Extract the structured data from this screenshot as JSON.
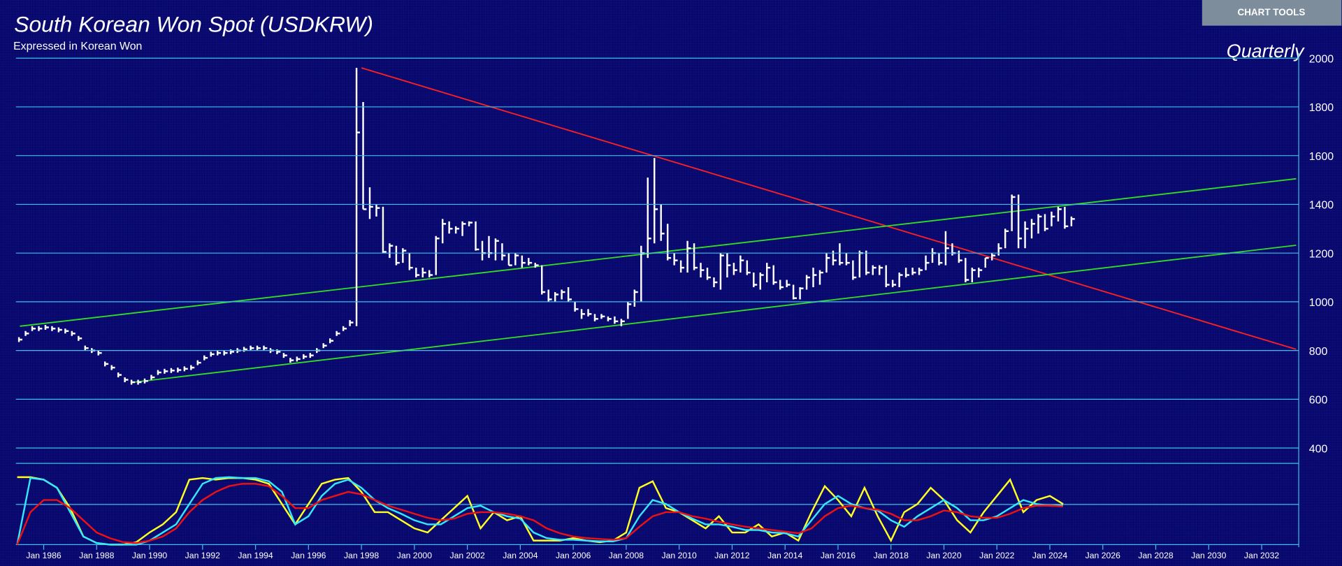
{
  "chart_tools": "CHART TOOLS",
  "chart_data": {
    "type": "ohlc",
    "title": "South Korean Won Spot (USDKRW)",
    "subtitle": "Expressed in Korean Won",
    "frequency_label": "Quarterly",
    "color": "#ffffff",
    "x": [
      1985,
      1985.25,
      1985.5,
      1985.75,
      1986,
      1986.25,
      1986.5,
      1986.75,
      1987,
      1987.25,
      1987.5,
      1987.75,
      1988,
      1988.25,
      1988.5,
      1988.75,
      1989,
      1989.25,
      1989.5,
      1989.75,
      1990,
      1990.25,
      1990.5,
      1990.75,
      1991,
      1991.25,
      1991.5,
      1991.75,
      1992,
      1992.25,
      1992.5,
      1992.75,
      1993,
      1993.25,
      1993.5,
      1993.75,
      1994,
      1994.25,
      1994.5,
      1994.75,
      1995,
      1995.25,
      1995.5,
      1995.75,
      1996,
      1996.25,
      1996.5,
      1996.75,
      1997,
      1997.25,
      1997.5,
      1997.75,
      1998,
      1998.25,
      1998.5,
      1998.75,
      1999,
      1999.25,
      1999.5,
      1999.75,
      2000,
      2000.25,
      2000.5,
      2000.75,
      2001,
      2001.25,
      2001.5,
      2001.75,
      2002,
      2002.25,
      2002.5,
      2002.75,
      2003,
      2003.25,
      2003.5,
      2003.75,
      2004,
      2004.25,
      2004.5,
      2004.75,
      2005,
      2005.25,
      2005.5,
      2005.75,
      2006,
      2006.25,
      2006.5,
      2006.75,
      2007,
      2007.25,
      2007.5,
      2007.75,
      2008,
      2008.25,
      2008.5,
      2008.75,
      2009,
      2009.25,
      2009.5,
      2009.75,
      2010,
      2010.25,
      2010.5,
      2010.75,
      2011,
      2011.25,
      2011.5,
      2011.75,
      2012,
      2012.25,
      2012.5,
      2012.75,
      2013,
      2013.25,
      2013.5,
      2013.75,
      2014,
      2014.25,
      2014.5,
      2014.75,
      2015,
      2015.25,
      2015.5,
      2015.75,
      2016,
      2016.25,
      2016.5,
      2016.75,
      2017,
      2017.25,
      2017.5,
      2017.75,
      2018,
      2018.25,
      2018.5,
      2018.75,
      2019,
      2019.25,
      2019.5,
      2019.75,
      2020,
      2020.25,
      2020.5,
      2020.75,
      2021,
      2021.25,
      2021.5,
      2021.75,
      2022,
      2022.25,
      2022.5,
      2022.75,
      2023,
      2023.25,
      2023.5,
      2023.75,
      2024,
      2024.25,
      2024.5,
      2024.75
    ],
    "high": [
      855,
      880,
      900,
      900,
      905,
      900,
      895,
      890,
      880,
      860,
      820,
      810,
      800,
      755,
      740,
      710,
      690,
      680,
      680,
      685,
      700,
      720,
      725,
      728,
      730,
      735,
      740,
      760,
      780,
      795,
      800,
      800,
      805,
      810,
      815,
      820,
      820,
      820,
      810,
      805,
      790,
      770,
      775,
      785,
      790,
      810,
      830,
      850,
      880,
      900,
      925,
      1960,
      1820,
      1470,
      1400,
      1390,
      1240,
      1230,
      1220,
      1200,
      1140,
      1140,
      1130,
      1270,
      1340,
      1330,
      1310,
      1330,
      1330,
      1330,
      1250,
      1270,
      1260,
      1240,
      1200,
      1200,
      1190,
      1180,
      1160,
      1150,
      1050,
      1040,
      1050,
      1060,
      1000,
      970,
      970,
      950,
      950,
      940,
      940,
      930,
      1000,
      1050,
      1230,
      1510,
      1590,
      1400,
      1320,
      1200,
      1170,
      1250,
      1240,
      1160,
      1140,
      1100,
      1200,
      1200,
      1160,
      1190,
      1170,
      1120,
      1120,
      1160,
      1150,
      1090,
      1090,
      1070,
      1060,
      1110,
      1140,
      1130,
      1200,
      1210,
      1240,
      1200,
      1170,
      1210,
      1210,
      1150,
      1150,
      1150,
      1090,
      1120,
      1140,
      1140,
      1140,
      1190,
      1220,
      1200,
      1290,
      1240,
      1210,
      1180,
      1140,
      1140,
      1180,
      1200,
      1240,
      1300,
      1440,
      1440,
      1330,
      1340,
      1360,
      1360,
      1370,
      1390,
      1390,
      1350
    ],
    "low": [
      835,
      860,
      880,
      880,
      885,
      880,
      875,
      870,
      860,
      840,
      800,
      790,
      780,
      735,
      720,
      690,
      670,
      660,
      660,
      665,
      680,
      700,
      705,
      708,
      710,
      715,
      720,
      740,
      760,
      775,
      780,
      780,
      785,
      790,
      795,
      800,
      800,
      800,
      790,
      785,
      770,
      750,
      755,
      765,
      770,
      790,
      810,
      830,
      860,
      880,
      900,
      900,
      1380,
      1340,
      1350,
      1200,
      1180,
      1150,
      1160,
      1130,
      1100,
      1100,
      1100,
      1110,
      1240,
      1280,
      1280,
      1270,
      1310,
      1210,
      1170,
      1180,
      1170,
      1170,
      1150,
      1150,
      1140,
      1150,
      1140,
      1030,
      1000,
      1000,
      1010,
      1000,
      960,
      930,
      940,
      920,
      930,
      920,
      910,
      900,
      930,
      980,
      1000,
      1180,
      1240,
      1250,
      1170,
      1150,
      1120,
      1120,
      1130,
      1100,
      1090,
      1060,
      1050,
      1100,
      1110,
      1120,
      1110,
      1060,
      1050,
      1080,
      1070,
      1050,
      1060,
      1010,
      1010,
      1050,
      1060,
      1070,
      1120,
      1150,
      1150,
      1150,
      1090,
      1100,
      1110,
      1110,
      1110,
      1060,
      1060,
      1060,
      1100,
      1110,
      1110,
      1130,
      1160,
      1150,
      1150,
      1190,
      1160,
      1080,
      1080,
      1100,
      1140,
      1170,
      1190,
      1220,
      1290,
      1220,
      1220,
      1260,
      1280,
      1290,
      1310,
      1330,
      1300,
      1310
    ],
    "close": [
      845,
      870,
      890,
      890,
      895,
      890,
      885,
      880,
      870,
      850,
      810,
      800,
      790,
      745,
      730,
      700,
      680,
      670,
      670,
      675,
      690,
      710,
      715,
      718,
      720,
      725,
      730,
      750,
      770,
      785,
      790,
      790,
      795,
      800,
      805,
      810,
      810,
      810,
      800,
      795,
      780,
      760,
      765,
      775,
      780,
      800,
      820,
      840,
      870,
      890,
      915,
      1695,
      1380,
      1390,
      1385,
      1205,
      1230,
      1160,
      1210,
      1140,
      1110,
      1120,
      1110,
      1260,
      1320,
      1300,
      1300,
      1320,
      1325,
      1215,
      1200,
      1200,
      1250,
      1190,
      1150,
      1190,
      1160,
      1160,
      1150,
      1040,
      1010,
      1030,
      1040,
      1010,
      970,
      950,
      950,
      930,
      940,
      930,
      920,
      920,
      990,
      1040,
      1200,
      1260,
      1380,
      1280,
      1180,
      1170,
      1140,
      1220,
      1140,
      1130,
      1100,
      1080,
      1190,
      1150,
      1130,
      1170,
      1120,
      1070,
      1110,
      1140,
      1080,
      1060,
      1070,
      1015,
      1055,
      1100,
      1110,
      1120,
      1180,
      1170,
      1160,
      1160,
      1100,
      1200,
      1120,
      1140,
      1140,
      1070,
      1070,
      1110,
      1110,
      1120,
      1130,
      1160,
      1200,
      1160,
      1220,
      1200,
      1170,
      1090,
      1130,
      1130,
      1180,
      1190,
      1220,
      1290,
      1430,
      1260,
      1300,
      1320,
      1350,
      1300,
      1350,
      1380,
      1310,
      1340
    ],
    "xlim": [
      1984.95,
      2033.4
    ],
    "xticks": [
      {
        "value": 1986,
        "label": "Jan 1986"
      },
      {
        "value": 1988,
        "label": "Jan 1988"
      },
      {
        "value": 1990,
        "label": "Jan 1990"
      },
      {
        "value": 1992,
        "label": "Jan 1992"
      },
      {
        "value": 1994,
        "label": "Jan 1994"
      },
      {
        "value": 1996,
        "label": "Jan 1996"
      },
      {
        "value": 1998,
        "label": "Jan 1998"
      },
      {
        "value": 2000,
        "label": "Jan 2000"
      },
      {
        "value": 2002,
        "label": "Jan 2002"
      },
      {
        "value": 2004,
        "label": "Jan 2004"
      },
      {
        "value": 2006,
        "label": "Jan 2006"
      },
      {
        "value": 2008,
        "label": "Jan 2008"
      },
      {
        "value": 2010,
        "label": "Jan 2010"
      },
      {
        "value": 2012,
        "label": "Jan 2012"
      },
      {
        "value": 2014,
        "label": "Jan 2014"
      },
      {
        "value": 2016,
        "label": "Jan 2016"
      },
      {
        "value": 2018,
        "label": "Jan 2018"
      },
      {
        "value": 2020,
        "label": "Jan 2020"
      },
      {
        "value": 2022,
        "label": "Jan 2022"
      },
      {
        "value": 2024,
        "label": "Jan 2024"
      },
      {
        "value": 2026,
        "label": "Jan 2026"
      },
      {
        "value": 2028,
        "label": "Jan 2028"
      },
      {
        "value": 2030,
        "label": "Jan 2030"
      },
      {
        "value": 2032,
        "label": "Jan 2032"
      }
    ],
    "ylim": [
      400,
      2000
    ],
    "yticks": [
      400,
      600,
      800,
      1000,
      1200,
      1400,
      1600,
      1800,
      2000
    ],
    "grid": true,
    "grid_color": "#3cc0e8",
    "trendlines": [
      {
        "color": "#ff2020",
        "x": [
          1998,
          2033.3
        ],
        "y": [
          1960,
          805
        ]
      },
      {
        "color": "#33dd22",
        "x": [
          1985.1,
          2033.3
        ],
        "y": [
          900,
          1505
        ]
      },
      {
        "color": "#33dd22",
        "x": [
          1989.4,
          2033.3
        ],
        "y": [
          670,
          1232
        ]
      }
    ],
    "indicator": {
      "type": "line",
      "ylim": [
        0,
        100
      ],
      "x": [
        1985,
        1985.5,
        1986,
        1986.5,
        1987,
        1987.5,
        1988,
        1988.5,
        1989,
        1989.5,
        1990,
        1990.5,
        1991,
        1991.5,
        1992,
        1992.5,
        1993,
        1993.5,
        1994,
        1994.5,
        1995,
        1995.5,
        1996,
        1996.5,
        1997,
        1997.5,
        1998,
        1998.5,
        1999,
        1999.5,
        2000,
        2000.5,
        2001,
        2001.5,
        2002,
        2002.5,
        2003,
        2003.5,
        2004,
        2004.5,
        2005,
        2005.5,
        2006,
        2006.5,
        2007,
        2007.5,
        2008,
        2008.5,
        2009,
        2009.5,
        2010,
        2010.5,
        2011,
        2011.5,
        2012,
        2012.5,
        2013,
        2013.5,
        2014,
        2014.5,
        2015,
        2015.5,
        2016,
        2016.5,
        2017,
        2017.5,
        2018,
        2018.5,
        2019,
        2019.5,
        2020,
        2020.5,
        2021,
        2021.5,
        2022,
        2022.5,
        2023,
        2023.5,
        2024,
        2024.5
      ],
      "series": [
        {
          "color": "#ffff22",
          "values": [
            83,
            83,
            80,
            70,
            45,
            10,
            2,
            0,
            0,
            3,
            15,
            25,
            40,
            80,
            82,
            80,
            82,
            82,
            80,
            75,
            50,
            25,
            50,
            75,
            80,
            82,
            65,
            40,
            40,
            30,
            20,
            15,
            30,
            45,
            60,
            20,
            40,
            30,
            35,
            5,
            5,
            5,
            8,
            5,
            3,
            5,
            15,
            70,
            78,
            45,
            40,
            30,
            20,
            35,
            15,
            15,
            25,
            10,
            15,
            5,
            40,
            72,
            55,
            35,
            70,
            35,
            5,
            40,
            50,
            70,
            55,
            30,
            15,
            40,
            60,
            80,
            40,
            55,
            60,
            50
          ]
        },
        {
          "color": "#33e8ff",
          "values": [
            0,
            82,
            80,
            70,
            40,
            10,
            2,
            0,
            0,
            0,
            5,
            15,
            25,
            50,
            75,
            82,
            83,
            82,
            82,
            78,
            65,
            25,
            35,
            60,
            75,
            80,
            70,
            55,
            45,
            38,
            30,
            25,
            25,
            35,
            45,
            48,
            40,
            35,
            32,
            15,
            8,
            6,
            6,
            5,
            4,
            4,
            8,
            35,
            55,
            50,
            40,
            32,
            25,
            25,
            22,
            18,
            18,
            15,
            14,
            10,
            30,
            50,
            60,
            50,
            45,
            42,
            30,
            22,
            35,
            45,
            55,
            45,
            30,
            30,
            35,
            45,
            55,
            50,
            48,
            48
          ]
        },
        {
          "color": "#ee1111",
          "values": [
            0,
            40,
            55,
            55,
            45,
            30,
            15,
            8,
            3,
            2,
            5,
            10,
            20,
            40,
            55,
            65,
            72,
            75,
            75,
            72,
            60,
            45,
            45,
            55,
            60,
            65,
            62,
            55,
            48,
            43,
            38,
            33,
            30,
            32,
            38,
            40,
            40,
            38,
            35,
            30,
            20,
            14,
            10,
            8,
            7,
            6,
            8,
            22,
            35,
            40,
            40,
            35,
            32,
            28,
            25,
            22,
            20,
            18,
            16,
            14,
            20,
            35,
            45,
            48,
            45,
            43,
            38,
            30,
            30,
            35,
            42,
            40,
            35,
            33,
            33,
            38,
            45,
            48,
            48,
            47
          ]
        }
      ]
    }
  }
}
